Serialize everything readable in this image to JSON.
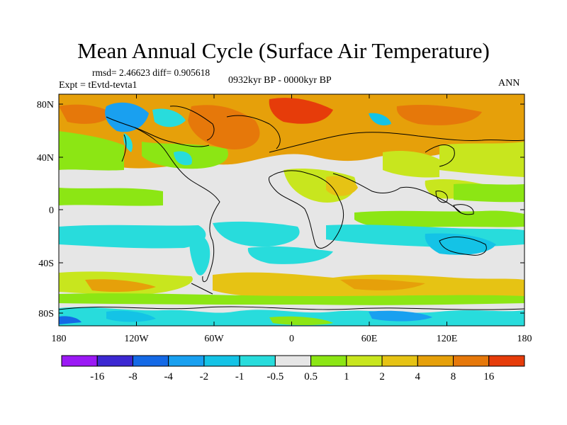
{
  "title": "Mean Annual Cycle (Surface Air Temperature)",
  "stats": "rmsd= 2.46623 diff= 0.905618",
  "experiment": "Expt = tEvtd-tevta1",
  "period": "0932kyr BP - 0000kyr BP",
  "season": "ANN",
  "lat_ticks": [
    "80N",
    "40N",
    "0",
    "40S",
    "80S"
  ],
  "lon_ticks": [
    "180",
    "120W",
    "60W",
    "0",
    "60E",
    "120E",
    "180"
  ],
  "colorbar": {
    "levels": [
      "-16",
      "-8",
      "-4",
      "-2",
      "-1",
      "-0.5",
      "0.5",
      "1",
      "2",
      "4",
      "8",
      "16"
    ],
    "colors": [
      "#9b19f5",
      "#3c28d2",
      "#1469e6",
      "#19a0f0",
      "#14c3e6",
      "#28dcdc",
      "#e6e6e6",
      "#8ce614",
      "#c8e61e",
      "#e6c314",
      "#e6a00a",
      "#e6780a",
      "#e63c0a"
    ]
  }
}
